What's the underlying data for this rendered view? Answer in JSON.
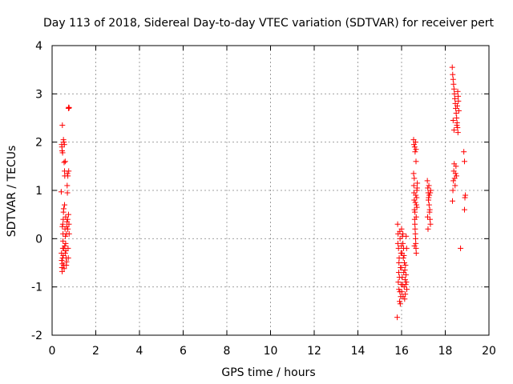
{
  "chart_data": {
    "type": "scatter",
    "title": "Day 113 of 2018, Sidereal Day-to-day VTEC variation (SDTVAR) for receiver pert",
    "xlabel": "GPS time / hours",
    "ylabel": "SDTVAR / TECUs",
    "xlim": [
      0,
      20
    ],
    "ylim": [
      -2,
      4
    ],
    "x_ticks": [
      0,
      2,
      4,
      6,
      8,
      10,
      12,
      14,
      16,
      18,
      20
    ],
    "y_ticks": [
      -2,
      -1,
      0,
      1,
      2,
      3,
      4
    ],
    "grid": true,
    "marker": "+",
    "marker_color": "#ff0000",
    "series": [
      {
        "name": "SDTVAR",
        "points": [
          [
            0.42,
            0.97
          ],
          [
            0.44,
            1.95
          ],
          [
            0.45,
            1.9
          ],
          [
            0.46,
            1.82
          ],
          [
            0.47,
            2.35
          ],
          [
            0.48,
            1.78
          ],
          [
            0.43,
            -0.3
          ],
          [
            0.44,
            -0.45
          ],
          [
            0.45,
            -0.6
          ],
          [
            0.46,
            -0.68
          ],
          [
            0.47,
            -0.52
          ],
          [
            0.48,
            -0.4
          ],
          [
            0.49,
            -0.2
          ],
          [
            0.5,
            -0.05
          ],
          [
            0.5,
            0.1
          ],
          [
            0.51,
            0.4
          ],
          [
            0.52,
            0.55
          ],
          [
            0.53,
            0.62
          ],
          [
            0.47,
            0.25
          ],
          [
            0.49,
            0.3
          ],
          [
            0.51,
            -0.35
          ],
          [
            0.53,
            -0.55
          ],
          [
            0.55,
            -0.62
          ],
          [
            0.52,
            2.05
          ],
          [
            0.54,
            2.0
          ],
          [
            0.56,
            1.95
          ],
          [
            0.55,
            1.58
          ],
          [
            0.57,
            1.4
          ],
          [
            0.58,
            1.3
          ],
          [
            0.6,
            1.6
          ],
          [
            0.59,
            0.2
          ],
          [
            0.61,
            0.05
          ],
          [
            0.62,
            -0.1
          ],
          [
            0.63,
            -0.25
          ],
          [
            0.64,
            -0.4
          ],
          [
            0.65,
            -0.55
          ],
          [
            0.58,
            -0.15
          ],
          [
            0.6,
            -0.3
          ],
          [
            0.66,
            0.1
          ],
          [
            0.67,
            0.25
          ],
          [
            0.68,
            0.35
          ],
          [
            0.69,
            1.1
          ],
          [
            0.7,
            0.95
          ],
          [
            0.71,
            0.4
          ],
          [
            0.72,
            0.2
          ],
          [
            0.73,
            -0.2
          ],
          [
            0.74,
            -0.4
          ],
          [
            0.7,
            1.35
          ],
          [
            0.72,
            1.3
          ],
          [
            0.75,
            2.7
          ],
          [
            0.76,
            2.72
          ],
          [
            0.78,
            2.71
          ],
          [
            0.75,
            0.5
          ],
          [
            0.77,
            0.3
          ],
          [
            0.78,
            0.1
          ],
          [
            0.76,
            1.4
          ],
          [
            0.57,
            0.7
          ],
          [
            0.62,
            0.45
          ],
          [
            0.66,
            -0.48
          ],
          [
            0.54,
            -0.2
          ],
          [
            15.8,
            -1.63
          ],
          [
            15.82,
            0.3
          ],
          [
            15.84,
            0.1
          ],
          [
            15.86,
            -0.2
          ],
          [
            15.88,
            -0.5
          ],
          [
            15.9,
            -0.8
          ],
          [
            15.92,
            -1.1
          ],
          [
            15.94,
            -1.35
          ],
          [
            15.96,
            -1.2
          ],
          [
            15.98,
            -0.95
          ],
          [
            16.0,
            -0.6
          ],
          [
            16.02,
            -0.3
          ],
          [
            16.04,
            0.05
          ],
          [
            16.06,
            -0.1
          ],
          [
            16.08,
            -0.4
          ],
          [
            16.1,
            -0.7
          ],
          [
            16.12,
            -1.0
          ],
          [
            16.14,
            -1.25
          ],
          [
            16.16,
            -0.85
          ],
          [
            16.18,
            -0.55
          ],
          [
            16.2,
            -0.75
          ],
          [
            16.22,
            -0.9
          ],
          [
            16.24,
            -1.05
          ],
          [
            15.85,
            -0.9
          ],
          [
            15.89,
            -0.4
          ],
          [
            15.93,
            0.0
          ],
          [
            15.97,
            -0.3
          ],
          [
            16.01,
            -1.1
          ],
          [
            16.05,
            -0.95
          ],
          [
            16.09,
            -0.2
          ],
          [
            16.13,
            -0.5
          ],
          [
            16.17,
            -1.15
          ],
          [
            15.83,
            -0.1
          ],
          [
            15.87,
            -0.7
          ],
          [
            15.91,
            -1.3
          ],
          [
            15.95,
            -0.6
          ],
          [
            15.99,
            -0.15
          ],
          [
            16.03,
            -0.8
          ],
          [
            16.07,
            -1.2
          ],
          [
            16.11,
            -0.35
          ],
          [
            16.15,
            -0.65
          ],
          [
            16.19,
            -0.95
          ],
          [
            16.21,
            0.05
          ],
          [
            16.23,
            -0.2
          ],
          [
            15.92,
            0.15
          ],
          [
            16.0,
            0.2
          ],
          [
            16.06,
            0.1
          ],
          [
            15.88,
            -1.05
          ],
          [
            16.55,
            2.05
          ],
          [
            16.57,
            1.95
          ],
          [
            16.6,
            1.9
          ],
          [
            16.62,
            1.8
          ],
          [
            16.64,
            2.0
          ],
          [
            16.66,
            1.85
          ],
          [
            16.55,
            1.35
          ],
          [
            16.56,
            1.1
          ],
          [
            16.57,
            0.95
          ],
          [
            16.58,
            0.8
          ],
          [
            16.59,
            0.6
          ],
          [
            16.6,
            0.4
          ],
          [
            16.61,
            0.3
          ],
          [
            16.62,
            0.2
          ],
          [
            16.63,
            0.1
          ],
          [
            16.64,
            0.0
          ],
          [
            16.65,
            -0.1
          ],
          [
            16.66,
            -0.2
          ],
          [
            16.67,
            -0.3
          ],
          [
            16.68,
            0.7
          ],
          [
            16.69,
            0.85
          ],
          [
            16.7,
            1.0
          ],
          [
            16.72,
            1.15
          ],
          [
            16.58,
            1.25
          ],
          [
            16.61,
            0.55
          ],
          [
            16.63,
            0.75
          ],
          [
            16.65,
            0.9
          ],
          [
            16.67,
            0.45
          ],
          [
            16.7,
            0.65
          ],
          [
            16.71,
            1.05
          ],
          [
            16.59,
            -0.15
          ],
          [
            16.66,
            1.6
          ],
          [
            17.18,
            1.2
          ],
          [
            17.2,
            1.05
          ],
          [
            17.22,
            0.95
          ],
          [
            17.24,
            0.85
          ],
          [
            17.26,
            0.7
          ],
          [
            17.28,
            0.55
          ],
          [
            17.3,
            0.4
          ],
          [
            17.32,
            0.3
          ],
          [
            17.21,
            0.2
          ],
          [
            17.23,
            0.8
          ],
          [
            17.25,
            1.1
          ],
          [
            17.27,
            0.9
          ],
          [
            17.29,
            0.6
          ],
          [
            17.31,
            0.95
          ],
          [
            17.33,
            1.0
          ],
          [
            17.19,
            0.45
          ],
          [
            18.32,
            3.55
          ],
          [
            18.34,
            3.4
          ],
          [
            18.36,
            3.3
          ],
          [
            18.38,
            3.2
          ],
          [
            18.4,
            3.1
          ],
          [
            18.42,
            3.0
          ],
          [
            18.44,
            2.9
          ],
          [
            18.46,
            2.8
          ],
          [
            18.48,
            2.7
          ],
          [
            18.5,
            2.6
          ],
          [
            18.52,
            2.5
          ],
          [
            18.54,
            2.4
          ],
          [
            18.56,
            2.3
          ],
          [
            18.58,
            2.2
          ],
          [
            18.6,
            2.85
          ],
          [
            18.62,
            2.65
          ],
          [
            18.33,
            0.78
          ],
          [
            18.35,
            1.0
          ],
          [
            18.37,
            1.2
          ],
          [
            18.39,
            1.4
          ],
          [
            18.41,
            1.55
          ],
          [
            18.43,
            1.25
          ],
          [
            18.45,
            1.1
          ],
          [
            18.47,
            1.35
          ],
          [
            18.49,
            1.5
          ],
          [
            18.51,
            1.3
          ],
          [
            18.53,
            2.35
          ],
          [
            18.55,
            2.75
          ],
          [
            18.57,
            3.05
          ],
          [
            18.59,
            2.95
          ],
          [
            18.36,
            2.45
          ],
          [
            18.4,
            2.25
          ],
          [
            18.7,
            -0.2
          ],
          [
            18.85,
            1.8
          ],
          [
            18.88,
            1.6
          ],
          [
            18.9,
            0.85
          ],
          [
            18.92,
            0.9
          ],
          [
            18.88,
            0.6
          ]
        ]
      }
    ]
  }
}
